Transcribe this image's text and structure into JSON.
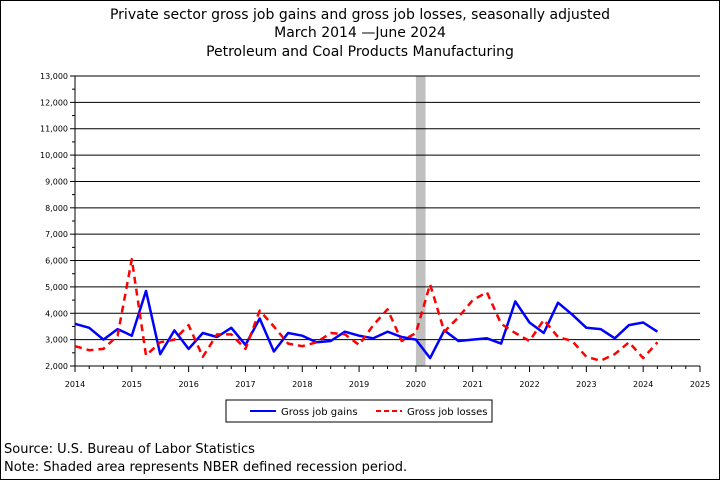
{
  "chart_data": {
    "type": "line",
    "title": "Private sector gross job gains and gross job losses, seasonally adjusted",
    "subtitle_dates": "March 2014 —June 2024",
    "subtitle": "Petroleum and Coal Products Manufacturing",
    "xlabel": "",
    "ylabel": "",
    "xlim": [
      2014,
      2025
    ],
    "ylim": [
      2000,
      13000
    ],
    "x_ticks": [
      "2014",
      "2015",
      "2016",
      "2017",
      "2018",
      "2019",
      "2020",
      "2021",
      "2022",
      "2023",
      "2024",
      "2025"
    ],
    "y_ticks": [
      "2,000",
      "3,000",
      "4,000",
      "5,000",
      "6,000",
      "7,000",
      "8,000",
      "9,000",
      "10,000",
      "11,000",
      "12,000",
      "13,000"
    ],
    "grid": "horizontal",
    "legend_position": "bottom",
    "recession": {
      "start": 2020.0,
      "end": 2020.17,
      "color": "#c0c0c0"
    },
    "x": [
      2014.0,
      2014.25,
      2014.5,
      2014.75,
      2015.0,
      2015.25,
      2015.5,
      2015.75,
      2016.0,
      2016.25,
      2016.5,
      2016.75,
      2017.0,
      2017.25,
      2017.5,
      2017.75,
      2018.0,
      2018.25,
      2018.5,
      2018.75,
      2019.0,
      2019.25,
      2019.5,
      2019.75,
      2020.0,
      2020.25,
      2020.5,
      2020.75,
      2021.0,
      2021.25,
      2021.5,
      2021.75,
      2022.0,
      2022.25,
      2022.5,
      2022.75,
      2023.0,
      2023.25,
      2023.5,
      2023.75,
      2024.0,
      2024.25
    ],
    "series": [
      {
        "name": "Gross job gains",
        "color": "#0000ff",
        "dash": "solid",
        "values": [
          3600,
          3450,
          3000,
          3400,
          3150,
          4850,
          2450,
          3350,
          2650,
          3250,
          3100,
          3450,
          2800,
          3800,
          2550,
          3250,
          3150,
          2900,
          2950,
          3300,
          3150,
          3050,
          3300,
          3100,
          3000,
          2300,
          3350,
          2950,
          3000,
          3050,
          2850,
          4450,
          3650,
          3250,
          4400,
          3950,
          3450,
          3400,
          3050,
          3550,
          3650,
          3300
        ]
      },
      {
        "name": "Gross job losses",
        "color": "#ff0000",
        "dash": "dashed",
        "values": [
          2750,
          2600,
          2650,
          3150,
          6050,
          2400,
          2900,
          3000,
          3550,
          2350,
          3200,
          3200,
          2650,
          4100,
          3500,
          2850,
          2750,
          2900,
          3250,
          3200,
          2800,
          3550,
          4150,
          2950,
          3250,
          5100,
          3300,
          3850,
          4500,
          4800,
          3600,
          3250,
          2950,
          3750,
          3100,
          2950,
          2350,
          2200,
          2450,
          2900,
          2300,
          2900
        ]
      }
    ]
  },
  "footer": {
    "source": "Source: U.S. Bureau of Labor Statistics",
    "note": "Note: Shaded area represents NBER defined recession period."
  }
}
